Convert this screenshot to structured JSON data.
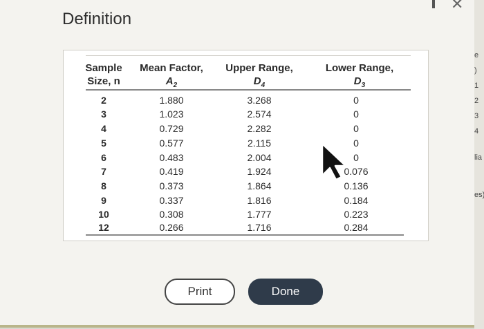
{
  "dialog": {
    "title": "Definition",
    "buttons": {
      "print": "Print",
      "done": "Done"
    }
  },
  "table": {
    "headers": {
      "sample": {
        "line1": "Sample",
        "line2": "Size, n"
      },
      "mean": {
        "line1": "Mean Factor,",
        "symbol": "A",
        "sub": "2"
      },
      "upper": {
        "line1": "Upper Range,",
        "symbol": "D",
        "sub": "4"
      },
      "lower": {
        "line1": "Lower Range,",
        "symbol": "D",
        "sub": "3"
      }
    },
    "rows": [
      {
        "n": "2",
        "a2": "1.880",
        "d4": "3.268",
        "d3": "0"
      },
      {
        "n": "3",
        "a2": "1.023",
        "d4": "2.574",
        "d3": "0"
      },
      {
        "n": "4",
        "a2": "0.729",
        "d4": "2.282",
        "d3": "0"
      },
      {
        "n": "5",
        "a2": "0.577",
        "d4": "2.115",
        "d3": "0"
      },
      {
        "n": "6",
        "a2": "0.483",
        "d4": "2.004",
        "d3": "0"
      },
      {
        "n": "7",
        "a2": "0.419",
        "d4": "1.924",
        "d3": "0.076"
      },
      {
        "n": "8",
        "a2": "0.373",
        "d4": "1.864",
        "d3": "0.136"
      },
      {
        "n": "9",
        "a2": "0.337",
        "d4": "1.816",
        "d3": "0.184"
      },
      {
        "n": "10",
        "a2": "0.308",
        "d4": "1.777",
        "d3": "0.223"
      },
      {
        "n": "12",
        "a2": "0.266",
        "d4": "1.716",
        "d3": "0.284"
      }
    ]
  },
  "background_fragments": [
    "e",
    ")",
    "1",
    "2",
    "3",
    "4",
    "lia",
    "es)"
  ],
  "icons": {
    "minimize": "minimize-icon",
    "close": "close-icon",
    "cursor": "mouse-pointer-icon"
  }
}
